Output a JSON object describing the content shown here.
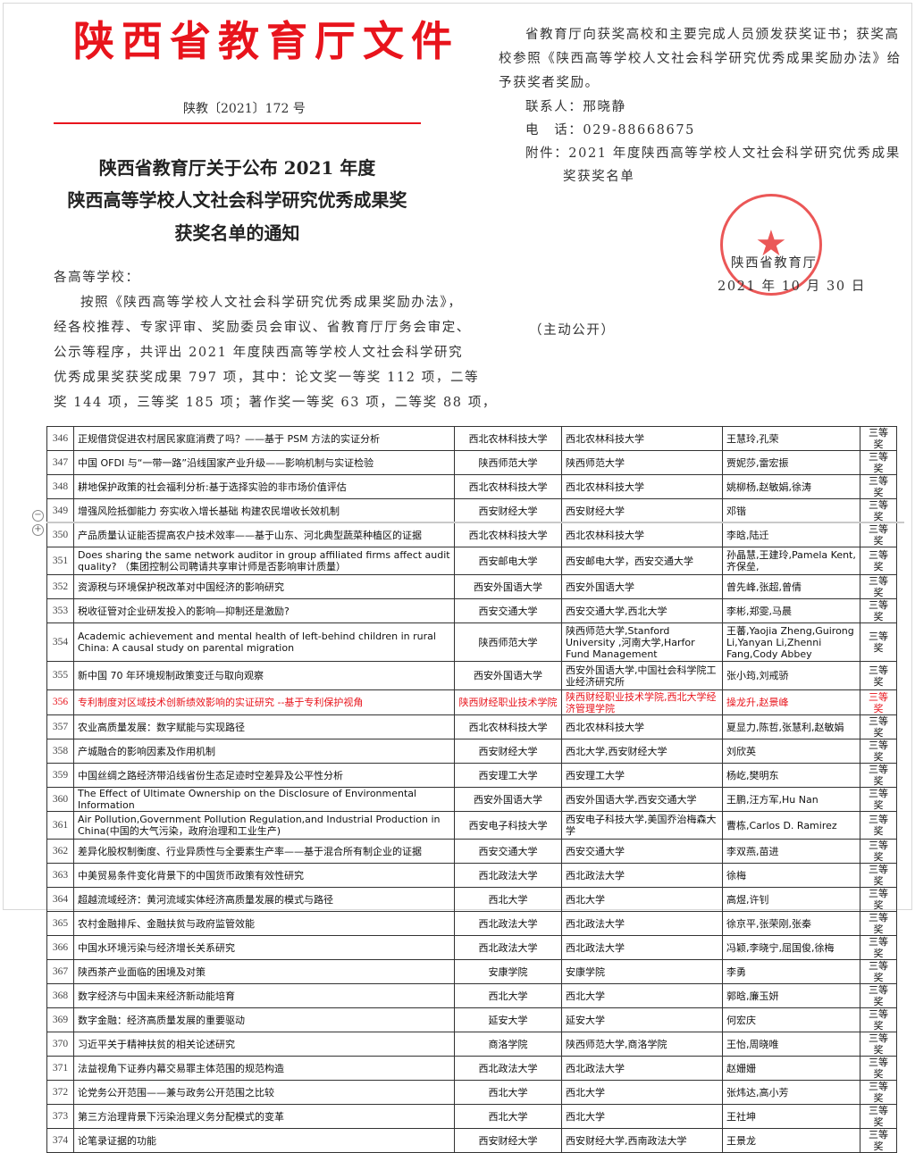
{
  "header": {
    "title": "陕西省教育厅文件",
    "doc_number": "陕教〔2021〕172 号"
  },
  "notice_title": [
    "陕西省教育厅关于公布 2021 年度",
    "陕西高等学校人文社会科学研究优秀成果奖",
    "获奖名单的通知"
  ],
  "salutation": "各高等学校：",
  "body_lines": [
    "按照《陕西高等学校人文社会科学研究优秀成果奖励办法》，",
    "经各校推荐、专家评审、奖励委员会审议、省教育厅厅务会审定、",
    "公示等程序，共评出 2021 年度陕西高等学校人文社会科学研究",
    "优秀成果奖获奖成果 797 项，其中：论文奖一等奖 112 项，二等",
    "奖 144 项，三等奖 185 项；著作奖一等奖 63 项，二等奖 88 项，"
  ],
  "right_lines": [
    "省教育厅向获奖高校和主要完成人员颁发获奖证书；获奖高",
    "校参照《陕西高等学校人文社会科学研究优秀成果奖励办法》给",
    "予获奖者奖励。"
  ],
  "contact": "联系人：邢晓静",
  "phone": "电　话：029-88668675",
  "attachment": [
    "附件：2021 年度陕西高等学校人文社会科学研究优秀成果",
    "奖获奖名单"
  ],
  "stamp": {
    "text": "陕西省教育厅",
    "color": "#e83a3a"
  },
  "signature": {
    "org": "陕西省教育厅",
    "date": "2021 年 10 月 30 日"
  },
  "disclosure": "（主动公开）",
  "colors": {
    "header_red": "#e8141c",
    "highlight_row": "#e8141c"
  },
  "table": {
    "rows": [
      {
        "no": "346",
        "title": "正规借贷促进农村居民家庭消费了吗？——基于 PSM 方法的实证分析",
        "school": "西北农林科技大学",
        "units": "西北农林科技大学",
        "authors": "王慧玲,孔荣",
        "award": "三等奖"
      },
      {
        "no": "347",
        "title": "中国 OFDI 与“一带一路”沿线国家产业升级——影响机制与实证检验",
        "school": "陕西师范大学",
        "units": "陕西师范大学",
        "authors": "贾妮莎,雷宏振",
        "award": "三等奖"
      },
      {
        "no": "348",
        "title": "耕地保护政策的社会福利分析:基于选择实验的非市场价值评估",
        "school": "西北农林科技大学",
        "units": "西北农林科技大学",
        "authors": "姚柳杨,赵敏娟,徐涛",
        "award": "三等奖"
      },
      {
        "no": "349",
        "title": "增强风险抵御能力 夯实收入增长基础 构建农民增收长效机制",
        "school": "西安财经大学",
        "units": "西安财经大学",
        "authors": "邓锴",
        "award": "三等奖"
      },
      {
        "no": "350",
        "title": "产品质量认证能否提高农户技术效率——基于山东、河北典型蔬菜种植区的证据",
        "school": "西北农林科技大学",
        "units": "西北农林科技大学",
        "authors": "李晗,陆迁",
        "award": "三等奖"
      },
      {
        "no": "351",
        "title": "Does sharing the same network auditor in group affiliated firms affect audit quality? （集团控制公司聘请共享审计师是否影响审计质量）",
        "school": "西安邮电大学",
        "units": "西安邮电大学，西安交通大学",
        "authors": "孙晶慧,王建玲,Pamela Kent,齐保垒,",
        "award": "三等奖"
      },
      {
        "no": "352",
        "title": "资源税与环境保护税改革对中国经济的影响研究",
        "school": "西安外国语大学",
        "units": "西安外国语大学",
        "authors": "曾先峰,张超,曾倩",
        "award": "三等奖"
      },
      {
        "no": "353",
        "title": "税收征管对企业研发投入的影响—抑制还是激励?",
        "school": "西安交通大学",
        "units": "西安交通大学,西北大学",
        "authors": "李彬,郑雯,马晨",
        "award": "三等奖"
      },
      {
        "no": "354",
        "title": "Academic achievement and mental health of left-behind children in rural China: A causal study on parental migration",
        "school": "陕西师范大学",
        "units": "陕西师范大学,Stanford University ,河南大学,Harfor Fund Management",
        "authors": "王蕃,Yaojia Zheng,Guirong Li,Yanyan Li,Zhenni Fang,Cody Abbey",
        "award": "三等奖"
      },
      {
        "no": "355",
        "title": "新中国 70 年环境规制政策变迁与取向观察",
        "school": "西安外国语大学",
        "units": "西安外国语大学,中国社会科学院工业经济研究所",
        "authors": "张小筠,刘戒骄",
        "award": "三等奖"
      },
      {
        "no": "356",
        "title": "专利制度对区域技术创新绩效影响的实证研究 --基于专利保护视角",
        "school": "陕西财经职业技术学院",
        "units": "陕西财经职业技术学院,西北大学经济管理学院",
        "authors": "操龙升,赵景峰",
        "award": "三等奖",
        "highlight": true
      },
      {
        "no": "357",
        "title": "农业高质量发展：数字赋能与实现路径",
        "school": "西北农林科技大学",
        "units": "西北农林科技大学",
        "authors": "夏显力,陈哲,张慧利,赵敏娟",
        "award": "三等奖"
      },
      {
        "no": "358",
        "title": "产城融合的影响因素及作用机制",
        "school": "西安财经大学",
        "units": "西北大学,西安财经大学",
        "authors": "刘欣英",
        "award": "三等奖"
      },
      {
        "no": "359",
        "title": "中国丝绸之路经济带沿线省份生态足迹时空差异及公平性分析",
        "school": "西安理工大学",
        "units": "西安理工大学",
        "authors": "杨屹,樊明东",
        "award": "三等奖"
      },
      {
        "no": "360",
        "title": "The Effect of Ultimate Ownership on the Disclosure of Environmental Information",
        "school": "西安外国语大学",
        "units": "西安外国语大学,西安交通大学",
        "authors": "王鹏,汪方军,Hu Nan",
        "award": "三等奖"
      },
      {
        "no": "361",
        "title": "Air Pollution,Government Pollution Regulation,and Industrial Production in China(中国的大气污染，政府治理和工业生产)",
        "school": "西安电子科技大学",
        "units": "西安电子科技大学,美国乔治梅森大学",
        "authors": "曹栋,Carlos D. Ramirez",
        "award": "三等奖"
      },
      {
        "no": "362",
        "title": "差异化股权制衡度、行业异质性与全要素生产率——基于混合所有制企业的证据",
        "school": "西安交通大学",
        "units": "西安交通大学",
        "authors": "李双燕,苗进",
        "award": "三等奖"
      },
      {
        "no": "363",
        "title": "中美贸易条件变化背景下的中国货币政策有效性研究",
        "school": "西北政法大学",
        "units": "西北政法大学",
        "authors": "徐梅",
        "award": "三等奖"
      },
      {
        "no": "364",
        "title": "超越流域经济：黄河流域实体经济高质量发展的模式与路径",
        "school": "西北大学",
        "units": "西北大学",
        "authors": "高煜,许钊",
        "award": "三等奖"
      },
      {
        "no": "365",
        "title": "农村金融排斥、金融扶贫与政府监管效能",
        "school": "西北政法大学",
        "units": "西北政法大学",
        "authors": "徐京平,张荣刚,张秦",
        "award": "三等奖"
      },
      {
        "no": "366",
        "title": "中国水环境污染与经济增长关系研究",
        "school": "西北政法大学",
        "units": "西北政法大学",
        "authors": "冯颖,李晓宁,屈国俊,徐梅",
        "award": "三等奖"
      },
      {
        "no": "367",
        "title": "陕西茶产业面临的困境及对策",
        "school": "安康学院",
        "units": "安康学院",
        "authors": "李勇",
        "award": "三等奖"
      },
      {
        "no": "368",
        "title": "数字经济与中国未来经济新动能培育",
        "school": "西北大学",
        "units": "西北大学",
        "authors": "郭晗,廉玉妍",
        "award": "三等奖"
      },
      {
        "no": "369",
        "title": "数字金融：经济高质量发展的重要驱动",
        "school": "延安大学",
        "units": "延安大学",
        "authors": "何宏庆",
        "award": "三等奖"
      },
      {
        "no": "370",
        "title": "习近平关于精神扶贫的相关论述研究",
        "school": "商洛学院",
        "units": "陕西师范大学,商洛学院",
        "authors": "王怡,周晓唯",
        "award": "三等奖"
      },
      {
        "no": "371",
        "title": "法益视角下证券内幕交易罪主体范围的规范构造",
        "school": "西北政法大学",
        "units": "西北政法大学",
        "authors": "赵姗姗",
        "award": "三等奖"
      },
      {
        "no": "372",
        "title": "论党务公开范围——兼与政务公开范围之比较",
        "school": "西北大学",
        "units": "西北大学",
        "authors": "张炜达,高小芳",
        "award": "三等奖"
      },
      {
        "no": "373",
        "title": "第三方治理背景下污染治理义务分配模式的变革",
        "school": "西北大学",
        "units": "西北大学",
        "authors": "王社坤",
        "award": "三等奖"
      },
      {
        "no": "374",
        "title": "论笔录证据的功能",
        "school": "西安财经大学",
        "units": "西安财经大学,西南政法大学",
        "authors": "王景龙",
        "award": "三等奖"
      }
    ]
  }
}
